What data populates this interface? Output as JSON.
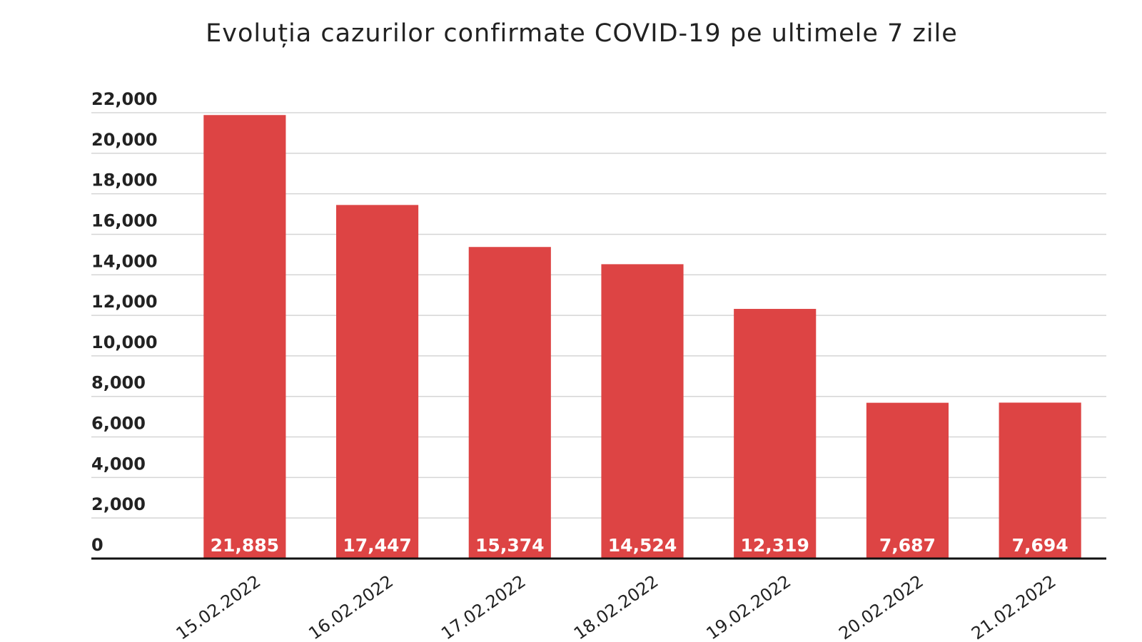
{
  "chart_data": {
    "type": "bar",
    "title": "Evoluția cazurilor confirmate COVID-19 pe ultimele 7 zile",
    "categories": [
      "15.02.2022",
      "16.02.2022",
      "17.02.2022",
      "18.02.2022",
      "19.02.2022",
      "20.02.2022",
      "21.02.2022"
    ],
    "values": [
      21885,
      17447,
      15374,
      14524,
      12319,
      7687,
      7694
    ],
    "value_labels": [
      "21,885",
      "17,447",
      "15,374",
      "14,524",
      "12,319",
      "7,687",
      "7,694"
    ],
    "color": "#dd4444",
    "ylim": [
      0,
      22000
    ],
    "yticks": [
      0,
      {
        "value": 2000,
        "label": "2,000"
      },
      {
        "value": 4000,
        "label": "4,000"
      },
      {
        "value": 6000,
        "label": "6,000"
      },
      {
        "value": 8000,
        "label": "8,000"
      },
      {
        "value": 10000,
        "label": "10,000"
      },
      {
        "value": 12000,
        "label": "12,000"
      },
      {
        "value": 14000,
        "label": "14,000"
      },
      {
        "value": 16000,
        "label": "16,000"
      },
      {
        "value": 18000,
        "label": "18,000"
      },
      {
        "value": 20000,
        "label": "20,000"
      },
      {
        "value": 22000,
        "label": "22,000"
      }
    ],
    "grid": true
  }
}
